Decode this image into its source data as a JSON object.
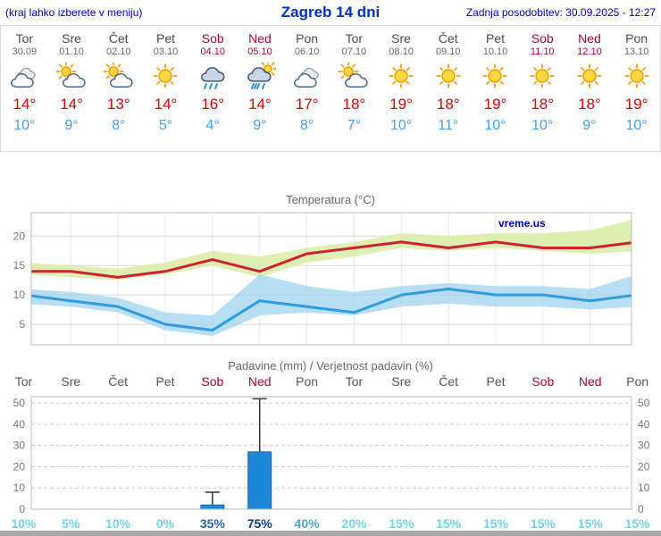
{
  "header": {
    "note": "(kraj lahko izberete v meniju)",
    "title": "Zagreb 14 dni",
    "updated": "Zadnja posodobitev: 30.09.2025 - 12:27"
  },
  "colors": {
    "header_blue": "#0000d0",
    "title_blue": "#0030c0",
    "weekend_red": "#b00038",
    "temp_max_red": "#e00000",
    "temp_min_blue": "#3da0f0",
    "bar_blue": "#1e88d8"
  },
  "days": [
    {
      "name": "Tor",
      "date": "30.09",
      "weekend": false,
      "icon": "cloudy",
      "tmax": "14°",
      "tmin": "10°"
    },
    {
      "name": "Sre",
      "date": "01.10",
      "weekend": false,
      "icon": "partly",
      "tmax": "14°",
      "tmin": "9°"
    },
    {
      "name": "Čet",
      "date": "02.10",
      "weekend": false,
      "icon": "partly",
      "tmax": "13°",
      "tmin": "8°"
    },
    {
      "name": "Pet",
      "date": "03.10",
      "weekend": false,
      "icon": "sun",
      "tmax": "14°",
      "tmin": "5°"
    },
    {
      "name": "Sob",
      "date": "04.10",
      "weekend": true,
      "icon": "rain",
      "tmax": "16°",
      "tmin": "4°"
    },
    {
      "name": "Ned",
      "date": "05.10",
      "weekend": true,
      "icon": "rain-sun",
      "tmax": "14°",
      "tmin": "9°"
    },
    {
      "name": "Pon",
      "date": "06.10",
      "weekend": false,
      "icon": "cloudy",
      "tmax": "17°",
      "tmin": "8°"
    },
    {
      "name": "Tor",
      "date": "07.10",
      "weekend": false,
      "icon": "partly",
      "tmax": "18°",
      "tmin": "7°"
    },
    {
      "name": "Sre",
      "date": "08.10",
      "weekend": false,
      "icon": "sun",
      "tmax": "19°",
      "tmin": "10°"
    },
    {
      "name": "Čet",
      "date": "09.10",
      "weekend": false,
      "icon": "sun",
      "tmax": "18°",
      "tmin": "11°"
    },
    {
      "name": "Pet",
      "date": "10.10",
      "weekend": false,
      "icon": "sun",
      "tmax": "19°",
      "tmin": "10°"
    },
    {
      "name": "Sob",
      "date": "11.10",
      "weekend": true,
      "icon": "sun",
      "tmax": "18°",
      "tmin": "10°"
    },
    {
      "name": "Ned",
      "date": "12.10",
      "weekend": true,
      "icon": "sun",
      "tmax": "18°",
      "tmin": "9°"
    },
    {
      "name": "Pon",
      "date": "13.10",
      "weekend": false,
      "icon": "sun",
      "tmax": "19°",
      "tmin": "10°"
    }
  ],
  "chart_data": [
    {
      "type": "line",
      "title": "Temperatura (°C)",
      "watermark": "vreme.us",
      "x_labels": [
        "Tor",
        "Sre",
        "Čet",
        "Pet",
        "Sob",
        "Ned",
        "Pon",
        "Tor",
        "Sre",
        "Čet",
        "Pet",
        "Sob",
        "Ned",
        "Pon"
      ],
      "yticks": [
        5,
        10,
        15,
        20
      ],
      "ylim": [
        1.5,
        24
      ],
      "grid": true,
      "series": [
        {
          "name": "temp-max",
          "color": "#cc2233",
          "values": [
            14,
            14,
            13,
            14,
            16,
            14,
            17,
            18,
            19,
            18,
            19,
            18,
            18,
            19
          ]
        },
        {
          "name": "temp-min",
          "color": "#2d9ce0",
          "values": [
            10,
            9,
            8,
            5,
            4,
            9,
            8,
            7,
            10,
            11,
            10,
            10,
            9,
            10
          ]
        }
      ],
      "bands": [
        {
          "name": "temp-max-range",
          "color": "#dcedaa",
          "opacity": 0.9,
          "upper": [
            15.5,
            15,
            14.5,
            15.5,
            17.5,
            16.5,
            18,
            19,
            20.5,
            20,
            20.5,
            20.5,
            21,
            23
          ],
          "lower": [
            13.5,
            13,
            12.5,
            13.5,
            15,
            13,
            15.5,
            16.5,
            18,
            17.5,
            18,
            17.5,
            17,
            17.5
          ]
        },
        {
          "name": "temp-min-range",
          "color": "#9fd3ef",
          "opacity": 0.75,
          "upper": [
            11,
            10.5,
            9.5,
            7,
            6.5,
            13.5,
            11.5,
            10.5,
            11.5,
            12,
            11.5,
            11.5,
            11,
            13.5
          ],
          "lower": [
            8.5,
            8,
            7,
            4,
            3,
            6.5,
            7,
            6.5,
            8,
            8.5,
            8,
            8,
            7.5,
            8
          ]
        }
      ]
    },
    {
      "type": "bar",
      "title": "Padavine (mm) / Verjetnost padavin (%)",
      "categories": [
        "Tor",
        "Sre",
        "Čet",
        "Pet",
        "Sob",
        "Ned",
        "Pon",
        "Tor",
        "Sre",
        "Čet",
        "Pet",
        "Sob",
        "Ned",
        "Pon"
      ],
      "weekend": [
        false,
        false,
        false,
        false,
        true,
        true,
        false,
        false,
        false,
        false,
        false,
        true,
        true,
        false
      ],
      "yticks": [
        0,
        10,
        20,
        30,
        40,
        50
      ],
      "ylim": [
        0,
        53
      ],
      "bar_color": "#1e88d8",
      "values": [
        0,
        0,
        0,
        0,
        2,
        27,
        0,
        0,
        0,
        0,
        0,
        0,
        0,
        0
      ],
      "whisker_max": [
        0,
        0,
        0,
        0,
        8,
        52,
        0,
        0,
        0,
        0,
        0,
        0,
        0,
        0
      ],
      "probabilities": [
        {
          "label": "10%",
          "color": "#6fd4ec"
        },
        {
          "label": "5%",
          "color": "#6fd4ec"
        },
        {
          "label": "10%",
          "color": "#6fd4ec"
        },
        {
          "label": "0%",
          "color": "#6fd4ec"
        },
        {
          "label": "35%",
          "color": "#2a66b0"
        },
        {
          "label": "75%",
          "color": "#0e3a8c"
        },
        {
          "label": "40%",
          "color": "#49a8d8"
        },
        {
          "label": "20%",
          "color": "#6fd4ec"
        },
        {
          "label": "15%",
          "color": "#6fd4ec"
        },
        {
          "label": "15%",
          "color": "#6fd4ec"
        },
        {
          "label": "15%",
          "color": "#6fd4ec"
        },
        {
          "label": "15%",
          "color": "#6fd4ec"
        },
        {
          "label": "15%",
          "color": "#6fd4ec"
        },
        {
          "label": "15%",
          "color": "#6fd4ec"
        }
      ]
    }
  ]
}
